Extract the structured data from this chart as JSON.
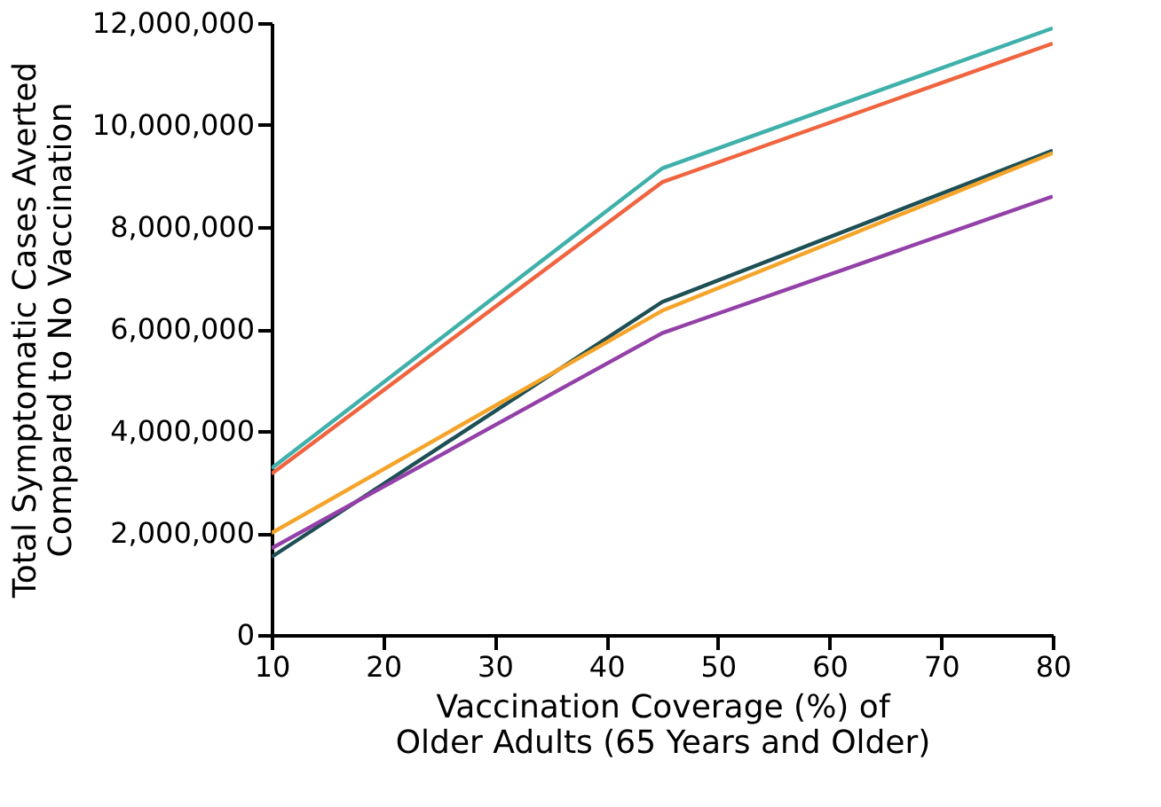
{
  "chart_data": {
    "type": "line",
    "xlabel": "Vaccination Coverage (%) of\nOlder Adults (65 Years and Older)",
    "ylabel": "Total Symptomatic Cases Averted\nCompared to No Vaccination",
    "x": [
      10,
      45,
      80
    ],
    "series": [
      {
        "color": "#3fb0aa",
        "values": [
          3270000,
          9150000,
          11900000
        ]
      },
      {
        "color": "#f0643f",
        "values": [
          3160000,
          8880000,
          11600000
        ]
      },
      {
        "color": "#1d4f55",
        "values": [
          1530000,
          6530000,
          9500000
        ]
      },
      {
        "color": "#f5a42a",
        "values": [
          2000000,
          6360000,
          9450000
        ]
      },
      {
        "color": "#9340a8",
        "values": [
          1700000,
          5920000,
          8600000
        ]
      }
    ],
    "xlim": [
      10,
      80
    ],
    "xticks": [
      10,
      20,
      30,
      40,
      50,
      60,
      70,
      80
    ],
    "ylim": [
      0,
      12000000
    ],
    "yticks": [
      0,
      {
        "value": 2000000,
        "label": "2,000,000"
      },
      {
        "value": 4000000,
        "label": "4,000,000"
      },
      {
        "value": 6000000,
        "label": "6,000,000"
      },
      {
        "value": 8000000,
        "label": "8,000,000"
      },
      {
        "value": 10000000,
        "label": "10,000,000"
      },
      {
        "value": 12000000,
        "label": "12,000,000"
      }
    ],
    "grid": false,
    "legend": false,
    "marker": "none",
    "line_style": "solid"
  }
}
